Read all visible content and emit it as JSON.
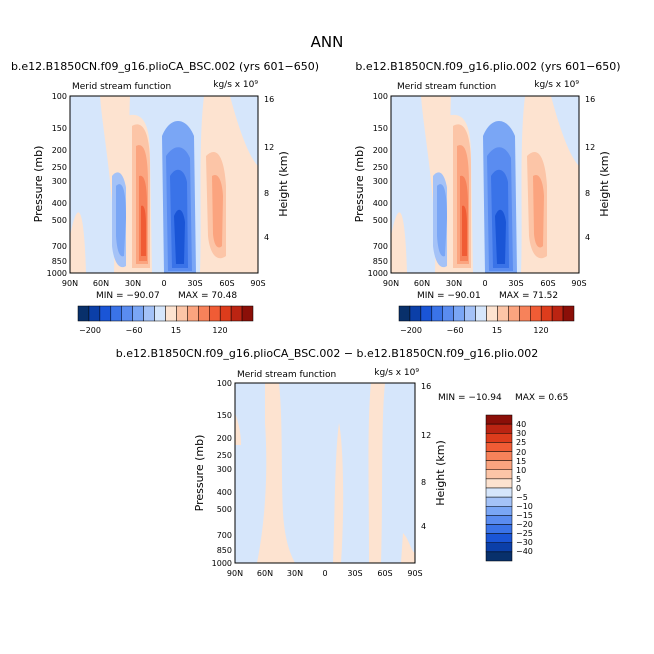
{
  "figure": {
    "title": "ANN",
    "diff_title": "b.e12.B1850CN.f09_g16.plioCA_BSC.002 − b.e12.B1850CN.f09_g16.plio.002"
  },
  "colors": {
    "main_scale": [
      "#08306b",
      "#0b3fa8",
      "#1a55d6",
      "#3a73e8",
      "#5a8cf0",
      "#7aa6f5",
      "#a4c2f7",
      "#d6e6fb",
      "#fde3d0",
      "#fcc5a7",
      "#fba47f",
      "#f7825a",
      "#f05c35",
      "#dd3c1c",
      "#bb2412",
      "#8b0f08"
    ],
    "diff_scale": [
      "#08306b",
      "#0b3fa8",
      "#1a55d6",
      "#3a73e8",
      "#5a8cf0",
      "#7aa6f5",
      "#a4c2f7",
      "#d6e6fb",
      "#fde3d0",
      "#fcc5a7",
      "#fba47f",
      "#f7825a",
      "#f05c35",
      "#dd3c1c",
      "#bb2412",
      "#8b0f08"
    ]
  },
  "chart_data": [
    {
      "type": "heatmap",
      "title": "b.e12.B1850CN.f09_g16.plioCA_BSC.002 (yrs 601−650)",
      "subtitle": "Merid stream function",
      "units": "kg/s x 10⁹",
      "xlabel": "",
      "ylabel": "Pressure (mb)",
      "y2label": "Height (km)",
      "x_ticks": [
        "90N",
        "60N",
        "30N",
        "0",
        "30S",
        "60S",
        "90S"
      ],
      "y_ticks": [
        "100",
        "150",
        "200",
        "250",
        "300",
        "400",
        "500",
        "700",
        "850",
        "1000"
      ],
      "y2_ticks": [
        "16",
        "12",
        "8",
        "4"
      ],
      "min_label": "MIN = −90.07",
      "max_label": "MAX =  70.48",
      "min": -90.07,
      "max": 70.48,
      "colorbar_labels": [
        "−200",
        "−60",
        "15",
        "120"
      ]
    },
    {
      "type": "heatmap",
      "title": "b.e12.B1850CN.f09_g16.plio.002 (yrs 601−650)",
      "subtitle": "Merid stream function",
      "units": "kg/s x 10⁹",
      "xlabel": "",
      "ylabel": "Pressure (mb)",
      "y2label": "Height (km)",
      "x_ticks": [
        "90N",
        "60N",
        "30N",
        "0",
        "30S",
        "60S",
        "90S"
      ],
      "y_ticks": [
        "100",
        "150",
        "200",
        "250",
        "300",
        "400",
        "500",
        "700",
        "850",
        "1000"
      ],
      "y2_ticks": [
        "16",
        "12",
        "8",
        "4"
      ],
      "min_label": "MIN = −90.01",
      "max_label": "MAX =  71.52",
      "min": -90.01,
      "max": 71.52,
      "colorbar_labels": [
        "−200",
        "−60",
        "15",
        "120"
      ]
    },
    {
      "type": "heatmap",
      "title": "",
      "subtitle": "Merid stream function",
      "units": "kg/s x 10⁹",
      "xlabel": "",
      "ylabel": "Pressure (mb)",
      "y2label": "Height (km)",
      "x_ticks": [
        "90N",
        "60N",
        "30N",
        "0",
        "30S",
        "60S",
        "90S"
      ],
      "y_ticks": [
        "100",
        "150",
        "200",
        "250",
        "300",
        "400",
        "500",
        "700",
        "850",
        "1000"
      ],
      "y2_ticks": [
        "16",
        "12",
        "8",
        "4"
      ],
      "min_label": "MIN = −10.94",
      "max_label": "MAX =   0.65",
      "min": -10.94,
      "max": 0.65,
      "colorbar_labels": [
        "40",
        "30",
        "25",
        "20",
        "15",
        "10",
        "5",
        "0",
        "−5",
        "−10",
        "−15",
        "−20",
        "−25",
        "−30",
        "−40"
      ]
    }
  ]
}
